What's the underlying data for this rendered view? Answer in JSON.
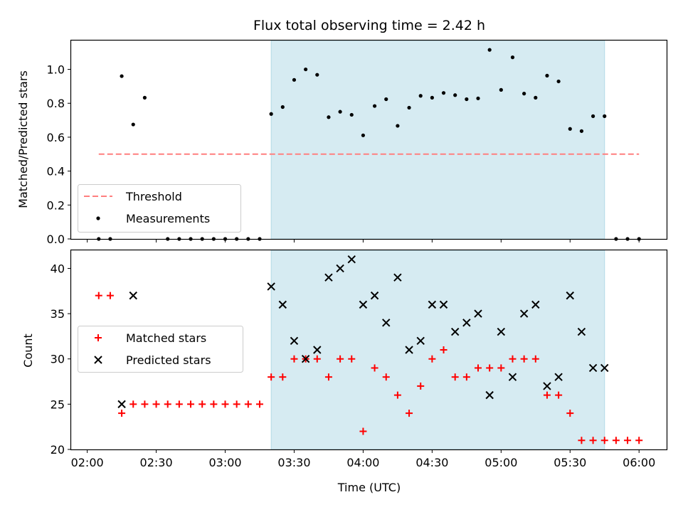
{
  "chart_data": [
    {
      "type": "scatter",
      "title": "Flux total observing time = 2.42 h",
      "ylabel": "Matched/Predicted stars",
      "ylim": [
        0,
        1.17
      ],
      "yticks": [
        0.0,
        0.2,
        0.4,
        0.6,
        0.8,
        1.0
      ],
      "ytick_labels": [
        "0.0",
        "0.2",
        "0.4",
        "0.6",
        "0.8",
        "1.0"
      ],
      "highlight_span": {
        "start": "03:20",
        "end": "05:45",
        "color": "#add8e6"
      },
      "threshold": {
        "name": "Threshold",
        "value": 0.5,
        "x_start": "02:05",
        "x_end": "06:00",
        "color": "#ff7f7f"
      },
      "legend": {
        "position": "lower left",
        "entries": [
          "Threshold",
          "Measurements"
        ]
      },
      "series": [
        {
          "name": "Measurements",
          "marker": "dot",
          "color": "#000000",
          "x": [
            "02:05",
            "02:10",
            "02:15",
            "02:20",
            "02:25",
            "02:35",
            "02:40",
            "02:45",
            "02:50",
            "02:55",
            "03:00",
            "03:05",
            "03:10",
            "03:15",
            "03:20",
            "03:25",
            "03:30",
            "03:35",
            "03:40",
            "03:45",
            "03:50",
            "03:55",
            "04:00",
            "04:05",
            "04:10",
            "04:15",
            "04:20",
            "04:25",
            "04:30",
            "04:35",
            "04:40",
            "04:45",
            "04:50",
            "04:55",
            "05:00",
            "05:05",
            "05:10",
            "05:15",
            "05:20",
            "05:25",
            "05:30",
            "05:35",
            "05:40",
            "05:45",
            "05:50",
            "05:55",
            "06:00"
          ],
          "values": [
            0,
            0,
            0.96,
            0.675,
            0.833,
            0,
            0,
            0,
            0,
            0,
            0,
            0,
            0,
            0,
            0.737,
            0.778,
            0.938,
            1.0,
            0.968,
            0.718,
            0.75,
            0.732,
            0.611,
            0.784,
            0.824,
            0.667,
            0.774,
            0.844,
            0.833,
            0.861,
            0.848,
            0.824,
            0.829,
            1.115,
            0.879,
            1.071,
            0.857,
            0.833,
            0.963,
            0.929,
            0.649,
            0.636,
            0.724,
            0.724,
            0,
            0,
            0
          ]
        }
      ]
    },
    {
      "type": "scatter",
      "xlabel": "Time (UTC)",
      "ylabel": "Count",
      "ylim": [
        20,
        42
      ],
      "yticks": [
        20,
        25,
        30,
        35,
        40
      ],
      "ytick_labels": [
        "20",
        "25",
        "30",
        "35",
        "40"
      ],
      "xlim": [
        "01:53",
        "06:12"
      ],
      "xticks": [
        "02:00",
        "02:30",
        "03:00",
        "03:30",
        "04:00",
        "04:30",
        "05:00",
        "05:30",
        "06:00"
      ],
      "highlight_span": {
        "start": "03:20",
        "end": "05:45",
        "color": "#add8e6"
      },
      "legend": {
        "position": "center left",
        "entries": [
          "Matched stars",
          "Predicted stars"
        ]
      },
      "series": [
        {
          "name": "Matched stars",
          "marker": "plus",
          "color": "#ff0000",
          "x": [
            "02:05",
            "02:10",
            "02:15",
            "02:20",
            "02:25",
            "02:30",
            "02:35",
            "02:40",
            "02:45",
            "02:50",
            "02:55",
            "03:00",
            "03:05",
            "03:10",
            "03:15",
            "03:20",
            "03:25",
            "03:30",
            "03:35",
            "03:40",
            "03:45",
            "03:50",
            "03:55",
            "04:00",
            "04:05",
            "04:10",
            "04:15",
            "04:20",
            "04:25",
            "04:30",
            "04:35",
            "04:40",
            "04:45",
            "04:50",
            "04:55",
            "05:00",
            "05:05",
            "05:10",
            "05:15",
            "05:20",
            "05:25",
            "05:30",
            "05:35",
            "05:40",
            "05:45",
            "05:50",
            "05:55",
            "06:00"
          ],
          "values": [
            37,
            37,
            24,
            25,
            25,
            25,
            25,
            25,
            25,
            25,
            25,
            25,
            25,
            25,
            25,
            28,
            28,
            30,
            30,
            30,
            28,
            30,
            30,
            22,
            29,
            28,
            26,
            24,
            27,
            30,
            31,
            28,
            28,
            29,
            29,
            29,
            30,
            30,
            30,
            26,
            26,
            24,
            21,
            21,
            21,
            21,
            21,
            21
          ]
        },
        {
          "name": "Predicted stars",
          "marker": "x",
          "color": "#000000",
          "x": [
            "02:15",
            "02:20",
            "03:20",
            "03:25",
            "03:30",
            "03:35",
            "03:40",
            "03:45",
            "03:50",
            "03:55",
            "04:00",
            "04:05",
            "04:10",
            "04:15",
            "04:20",
            "04:25",
            "04:30",
            "04:35",
            "04:40",
            "04:45",
            "04:50",
            "04:55",
            "05:00",
            "05:05",
            "05:10",
            "05:15",
            "05:20",
            "05:25",
            "05:30",
            "05:35",
            "05:40",
            "05:45"
          ],
          "values": [
            25,
            37,
            38,
            36,
            32,
            30,
            31,
            39,
            40,
            41,
            36,
            37,
            34,
            39,
            31,
            32,
            36,
            36,
            33,
            34,
            35,
            26,
            33,
            28,
            35,
            36,
            27,
            28,
            37,
            33,
            29,
            29
          ]
        }
      ]
    }
  ]
}
